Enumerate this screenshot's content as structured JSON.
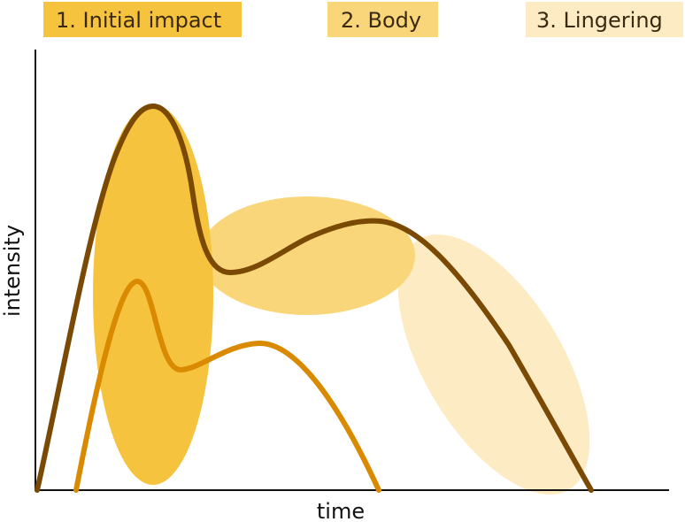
{
  "phases": [
    {
      "label": "1. Initial impact",
      "color": "#f6c33e"
    },
    {
      "label": "2. Body",
      "color": "#f9d679"
    },
    {
      "label": "3. Lingering",
      "color": "#fcebc3"
    }
  ],
  "axes": {
    "xlabel": "time",
    "ylabel": "intensity"
  },
  "curves": [
    {
      "color": "#7a4a05"
    },
    {
      "color": "#d98a00"
    }
  ]
}
